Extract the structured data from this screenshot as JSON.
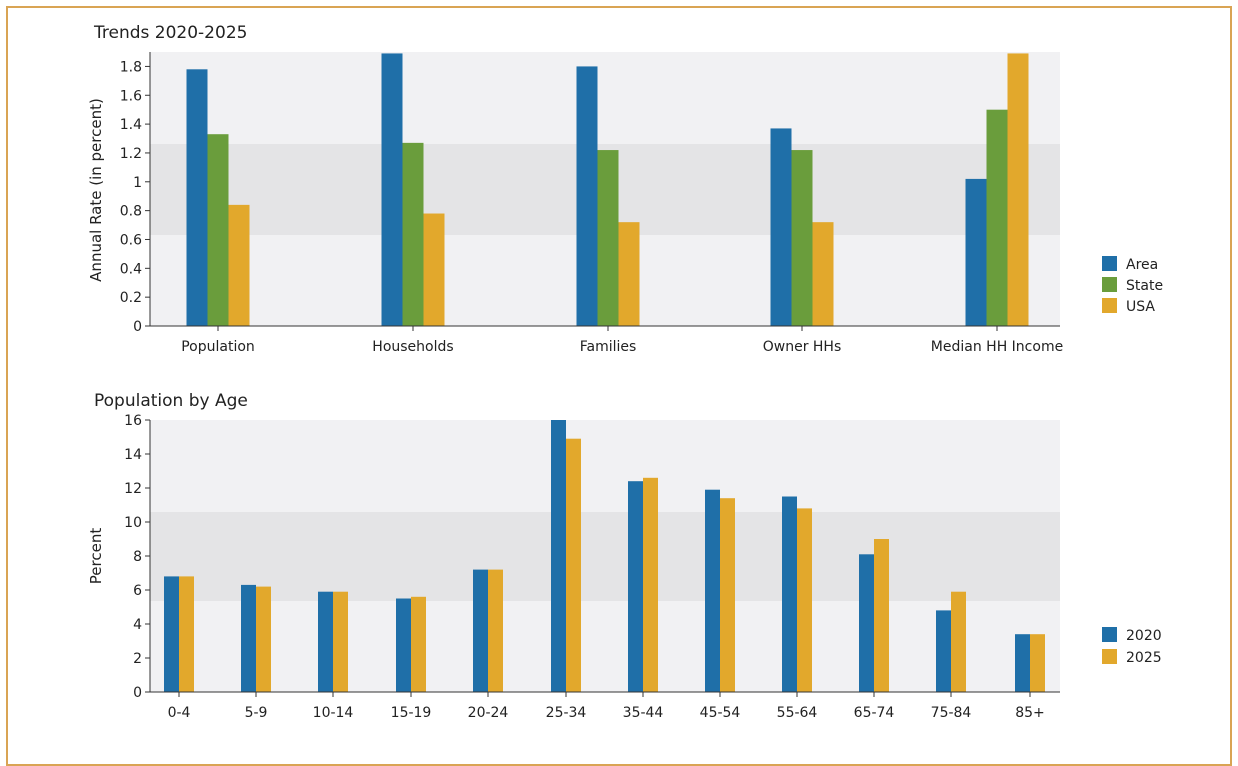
{
  "chart_data": [
    {
      "type": "bar",
      "title": "Trends 2020-2025",
      "xlabel": "",
      "ylabel": "Annual Rate (in percent)",
      "ylim": [
        0,
        1.9
      ],
      "yticks": [
        "0",
        "0.2",
        "0.4",
        "0.6",
        "0.8",
        "1",
        "1.2",
        "1.4",
        "1.6",
        "1.8"
      ],
      "categories": [
        "Population",
        "Households",
        "Families",
        "Owner HHs",
        "Median HH Income"
      ],
      "series": [
        {
          "name": "Area",
          "color": "#1f6fa8",
          "values": [
            1.78,
            1.89,
            1.8,
            1.37,
            1.02
          ]
        },
        {
          "name": "State",
          "color": "#6a9d3c",
          "values": [
            1.33,
            1.27,
            1.22,
            1.22,
            1.5
          ]
        },
        {
          "name": "USA",
          "color": "#e2a82c",
          "values": [
            0.84,
            0.78,
            0.72,
            0.72,
            1.89
          ]
        }
      ],
      "legend": "right",
      "grid": false
    },
    {
      "type": "bar",
      "title": "Population by Age",
      "xlabel": "",
      "ylabel": "Percent",
      "ylim": [
        0,
        16
      ],
      "yticks": [
        "0",
        "2",
        "4",
        "6",
        "8",
        "10",
        "12",
        "14",
        "16"
      ],
      "categories": [
        "0-4",
        "5-9",
        "10-14",
        "15-19",
        "20-24",
        "25-34",
        "35-44",
        "45-54",
        "55-64",
        "65-74",
        "75-84",
        "85+"
      ],
      "series": [
        {
          "name": "2020",
          "color": "#1f6fa8",
          "values": [
            6.8,
            6.3,
            5.9,
            5.5,
            7.2,
            16.0,
            12.4,
            11.9,
            11.5,
            8.1,
            4.8,
            3.4
          ]
        },
        {
          "name": "2025",
          "color": "#e2a82c",
          "values": [
            6.8,
            6.2,
            5.9,
            5.6,
            7.2,
            14.9,
            12.6,
            11.4,
            10.8,
            9.0,
            5.9,
            3.4
          ]
        }
      ],
      "legend": "right",
      "grid": false
    }
  ]
}
